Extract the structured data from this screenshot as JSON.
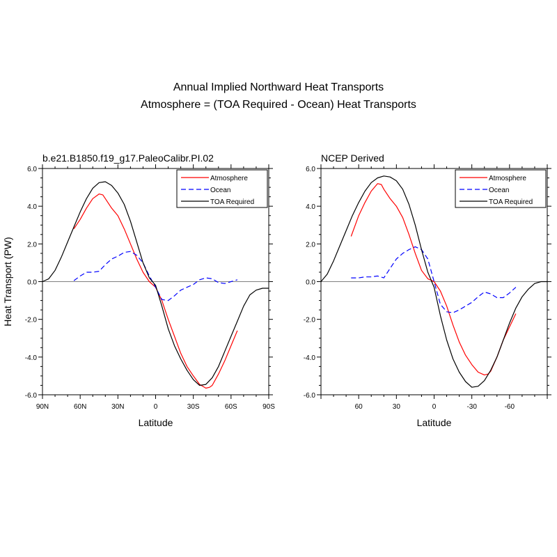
{
  "figure": {
    "title": "Annual Implied Northward Heat Transports",
    "subtitle": "Atmosphere = (TOA Required - Ocean) Heat Transports"
  },
  "chart_data": [
    {
      "type": "line",
      "title": "b.e21.B1850.f19_g17.PaleoCalibr.PI.02",
      "xlabel": "Latitude",
      "ylabel": "Heat Transport (PW)",
      "xlim": [
        90,
        -90
      ],
      "ylim": [
        -6,
        6
      ],
      "xticks": [
        90,
        60,
        30,
        0,
        -30,
        -60,
        -90
      ],
      "xtick_labels": [
        "90N",
        "60N",
        "30N",
        "0",
        "30S",
        "60S",
        "90S"
      ],
      "yticks": [
        6,
        4,
        2,
        0,
        -2,
        -4,
        -6
      ],
      "ytick_labels": [
        "6.0",
        "4.0",
        "2.0",
        "0.0",
        "-2.0",
        "-4.0",
        "-6.0"
      ],
      "zero_line": true,
      "legend_position": "top-right",
      "series": [
        {
          "name": "Atmosphere",
          "color": "#ff0000",
          "dash": "solid",
          "x": [
            65,
            60,
            55,
            50,
            45,
            42,
            40,
            35,
            30,
            25,
            20,
            15,
            10,
            5,
            0,
            -5,
            -10,
            -15,
            -20,
            -25,
            -30,
            -35,
            -40,
            -43,
            -45,
            -50,
            -55,
            -60,
            -65
          ],
          "y": [
            2.8,
            3.3,
            3.9,
            4.4,
            4.65,
            4.6,
            4.4,
            3.9,
            3.5,
            2.8,
            2.0,
            1.2,
            0.5,
            0.0,
            -0.3,
            -1.0,
            -2.0,
            -2.9,
            -3.8,
            -4.5,
            -5.0,
            -5.45,
            -5.65,
            -5.6,
            -5.5,
            -4.9,
            -4.2,
            -3.4,
            -2.6
          ]
        },
        {
          "name": "Ocean",
          "color": "#0000ff",
          "dash": "dashed",
          "x": [
            65,
            60,
            55,
            50,
            45,
            40,
            35,
            30,
            25,
            20,
            15,
            10,
            5,
            0,
            -5,
            -10,
            -15,
            -20,
            -25,
            -30,
            -35,
            -40,
            -45,
            -50,
            -55,
            -60,
            -65
          ],
          "y": [
            0.05,
            0.3,
            0.5,
            0.5,
            0.55,
            0.9,
            1.2,
            1.35,
            1.55,
            1.6,
            1.4,
            1.0,
            0.3,
            -0.3,
            -0.95,
            -1.0,
            -0.75,
            -0.45,
            -0.3,
            -0.15,
            0.1,
            0.2,
            0.15,
            -0.05,
            -0.1,
            0.0,
            0.1
          ]
        },
        {
          "name": "TOA Required",
          "color": "#000000",
          "dash": "solid",
          "x": [
            90,
            85,
            80,
            75,
            70,
            65,
            60,
            55,
            50,
            45,
            40,
            35,
            30,
            25,
            20,
            15,
            10,
            5,
            0,
            -5,
            -10,
            -15,
            -20,
            -25,
            -30,
            -35,
            -40,
            -45,
            -50,
            -55,
            -60,
            -65,
            -70,
            -75,
            -80,
            -85,
            -90
          ],
          "y": [
            0.0,
            0.15,
            0.6,
            1.3,
            2.1,
            2.9,
            3.7,
            4.4,
            4.95,
            5.25,
            5.3,
            5.1,
            4.7,
            4.1,
            3.2,
            2.1,
            1.0,
            0.2,
            -0.2,
            -1.3,
            -2.5,
            -3.4,
            -4.1,
            -4.7,
            -5.2,
            -5.5,
            -5.45,
            -5.1,
            -4.5,
            -3.7,
            -2.9,
            -2.1,
            -1.3,
            -0.7,
            -0.45,
            -0.35,
            -0.35
          ]
        }
      ]
    },
    {
      "type": "line",
      "title": "NCEP Derived",
      "xlabel": "Latitude",
      "ylabel": "",
      "xlim": [
        90,
        -90
      ],
      "ylim": [
        -6,
        6
      ],
      "xticks": [
        60,
        30,
        0,
        -30,
        -60
      ],
      "xtick_labels": [
        "60",
        "30",
        "0",
        "-30",
        "-60"
      ],
      "yticks": [
        6,
        4,
        2,
        0,
        -2,
        -4,
        -6
      ],
      "ytick_labels": [
        "6.0",
        "4.0",
        "2.0",
        "0.0",
        "-2.0",
        "-4.0",
        "-6.0"
      ],
      "zero_line": true,
      "legend_position": "top-right",
      "series": [
        {
          "name": "Atmosphere",
          "color": "#ff0000",
          "dash": "solid",
          "x": [
            66,
            60,
            55,
            50,
            45,
            42,
            40,
            35,
            30,
            25,
            20,
            15,
            10,
            5,
            0,
            -5,
            -10,
            -15,
            -20,
            -25,
            -30,
            -35,
            -40,
            -43,
            -45,
            -50,
            -55,
            -60,
            -65
          ],
          "y": [
            2.4,
            3.5,
            4.2,
            4.8,
            5.2,
            5.15,
            4.9,
            4.4,
            4.0,
            3.4,
            2.5,
            1.5,
            0.6,
            0.15,
            0.0,
            -0.5,
            -1.3,
            -2.3,
            -3.2,
            -3.9,
            -4.4,
            -4.8,
            -4.95,
            -4.9,
            -4.75,
            -4.0,
            -3.1,
            -2.4,
            -1.7
          ]
        },
        {
          "name": "Ocean",
          "color": "#0000ff",
          "dash": "dashed",
          "x": [
            66,
            60,
            55,
            50,
            45,
            40,
            35,
            30,
            25,
            20,
            15,
            10,
            5,
            0,
            -5,
            -10,
            -15,
            -20,
            -25,
            -30,
            -35,
            -40,
            -45,
            -50,
            -55,
            -60,
            -65
          ],
          "y": [
            0.2,
            0.2,
            0.25,
            0.25,
            0.3,
            0.2,
            0.7,
            1.2,
            1.5,
            1.7,
            1.85,
            1.7,
            1.2,
            0.0,
            -1.2,
            -1.6,
            -1.65,
            -1.5,
            -1.3,
            -1.1,
            -0.8,
            -0.55,
            -0.65,
            -0.85,
            -0.85,
            -0.6,
            -0.3
          ]
        },
        {
          "name": "TOA Required",
          "color": "#000000",
          "dash": "solid",
          "x": [
            90,
            85,
            80,
            75,
            70,
            65,
            60,
            55,
            50,
            45,
            40,
            35,
            30,
            25,
            20,
            15,
            10,
            5,
            0,
            -5,
            -10,
            -15,
            -20,
            -25,
            -30,
            -35,
            -40,
            -45,
            -50,
            -55,
            -60,
            -65,
            -70,
            -75,
            -80,
            -85,
            -90
          ],
          "y": [
            0.0,
            0.4,
            1.1,
            1.9,
            2.7,
            3.5,
            4.2,
            4.8,
            5.25,
            5.5,
            5.6,
            5.55,
            5.35,
            4.9,
            4.1,
            3.0,
            1.7,
            0.5,
            -0.3,
            -1.8,
            -3.1,
            -4.1,
            -4.8,
            -5.3,
            -5.6,
            -5.55,
            -5.25,
            -4.7,
            -4.0,
            -3.1,
            -2.2,
            -1.4,
            -0.8,
            -0.4,
            -0.1,
            0.0,
            0.0
          ]
        }
      ]
    }
  ]
}
